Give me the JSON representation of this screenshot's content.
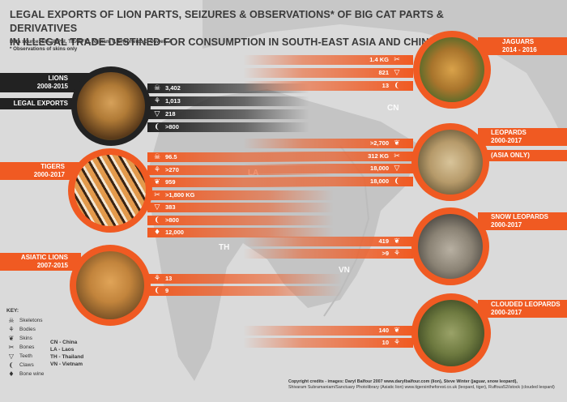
{
  "title_line1": "LEGAL EXPORTS OF LION PARTS, SEIZURES & OBSERVATIONS* OF BIG CAT PARTS & DERIVATIVES",
  "title_line2": "IN ILLEGAL TRADE DESTINED FOR CONSUMPTION IN SOUTH-EAST ASIA AND CHINA",
  "source": "Data source: EIA, WPSI, TRAFFIC, Nijman. V, Shepherd. C, Oswell. A",
  "note": "* Observations of skins only",
  "map_labels": {
    "cn": "CN",
    "la": "LA",
    "th": "TH",
    "vn": "VN"
  },
  "colors": {
    "accent": "#f05a22",
    "dark": "#222222",
    "background": "#dadada"
  },
  "lions": {
    "name": "LIONS",
    "years": "2008-2015",
    "sub": "LEGAL EXPORTS",
    "rows": [
      {
        "icon": "skeleton-icon",
        "value": "3,402"
      },
      {
        "icon": "body-icon",
        "value": "1,013"
      },
      {
        "icon": "teeth-icon",
        "value": "218"
      },
      {
        "icon": "claws-icon",
        "value": ">800"
      }
    ]
  },
  "tigers": {
    "name": "TIGERS",
    "years": "2000-2017",
    "rows": [
      {
        "icon": "skeleton-icon",
        "value": "96.5"
      },
      {
        "icon": "body-icon",
        "value": ">270"
      },
      {
        "icon": "skins-icon",
        "value": "959"
      },
      {
        "icon": "bones-icon",
        "value": ">1,800 KG"
      },
      {
        "icon": "teeth-icon",
        "value": "383"
      },
      {
        "icon": "claws-icon",
        "value": ">800"
      },
      {
        "icon": "bone-wine-icon",
        "value": "12,000"
      }
    ]
  },
  "asiatic_lions": {
    "name": "ASIATIC LIONS",
    "years": "2007-2015",
    "rows": [
      {
        "icon": "body-icon",
        "value": "13"
      },
      {
        "icon": "claws-icon",
        "value": "9"
      }
    ]
  },
  "jaguars": {
    "name": "JAGUARS",
    "years": "2014 - 2016",
    "rows": [
      {
        "icon": "bones-icon",
        "value": "1.4 KG"
      },
      {
        "icon": "teeth-icon",
        "value": "821"
      },
      {
        "icon": "claws-icon",
        "value": "13"
      }
    ]
  },
  "leopards": {
    "name": "LEOPARDS",
    "years": "2000-2017",
    "sub": "(ASIA ONLY)",
    "rows": [
      {
        "icon": "skins-icon",
        "value": ">2,700"
      },
      {
        "icon": "bones-icon",
        "value": "312 KG"
      },
      {
        "icon": "teeth-icon",
        "value": "18,000"
      },
      {
        "icon": "claws-icon",
        "value": "18,000"
      }
    ]
  },
  "snow_leopards": {
    "name": "SNOW LEOPARDS",
    "years": "2000-2017",
    "rows": [
      {
        "icon": "skins-icon",
        "value": "419"
      },
      {
        "icon": "body-icon",
        "value": ">9"
      }
    ]
  },
  "clouded_leopards": {
    "name": "CLOUDED LEOPARDS",
    "years": "2000-2017",
    "rows": [
      {
        "icon": "skins-icon",
        "value": "140"
      },
      {
        "icon": "body-icon",
        "value": "10"
      }
    ]
  },
  "key": {
    "title": "KEY:",
    "items": [
      {
        "icon": "skeleton-icon",
        "label": "Skeletons"
      },
      {
        "icon": "body-icon",
        "label": "Bodies"
      },
      {
        "icon": "skins-icon",
        "label": "Skins"
      },
      {
        "icon": "bones-icon",
        "label": "Bones"
      },
      {
        "icon": "teeth-icon",
        "label": "Teeth"
      },
      {
        "icon": "claws-icon",
        "label": "Claws"
      },
      {
        "icon": "bone-wine-icon",
        "label": "Bone wine"
      }
    ],
    "abbreviations": [
      "CN - China",
      "LA - Laos",
      "TH - Thailand",
      "VN - Vietnam"
    ]
  },
  "credits_line1": "Copyright credits - images: Daryl Balfour 2007 www.darylbalfour.com (lion), Steve Winter (jaguar, snow leopard),",
  "credits_line2": "Shivaram Subramaniam/Sanctuary Photolibrary (Asiatic lion) www.tigersintheforest.co.uk (leopard, tiger), Ruffous52/istock (clouded leopard)"
}
